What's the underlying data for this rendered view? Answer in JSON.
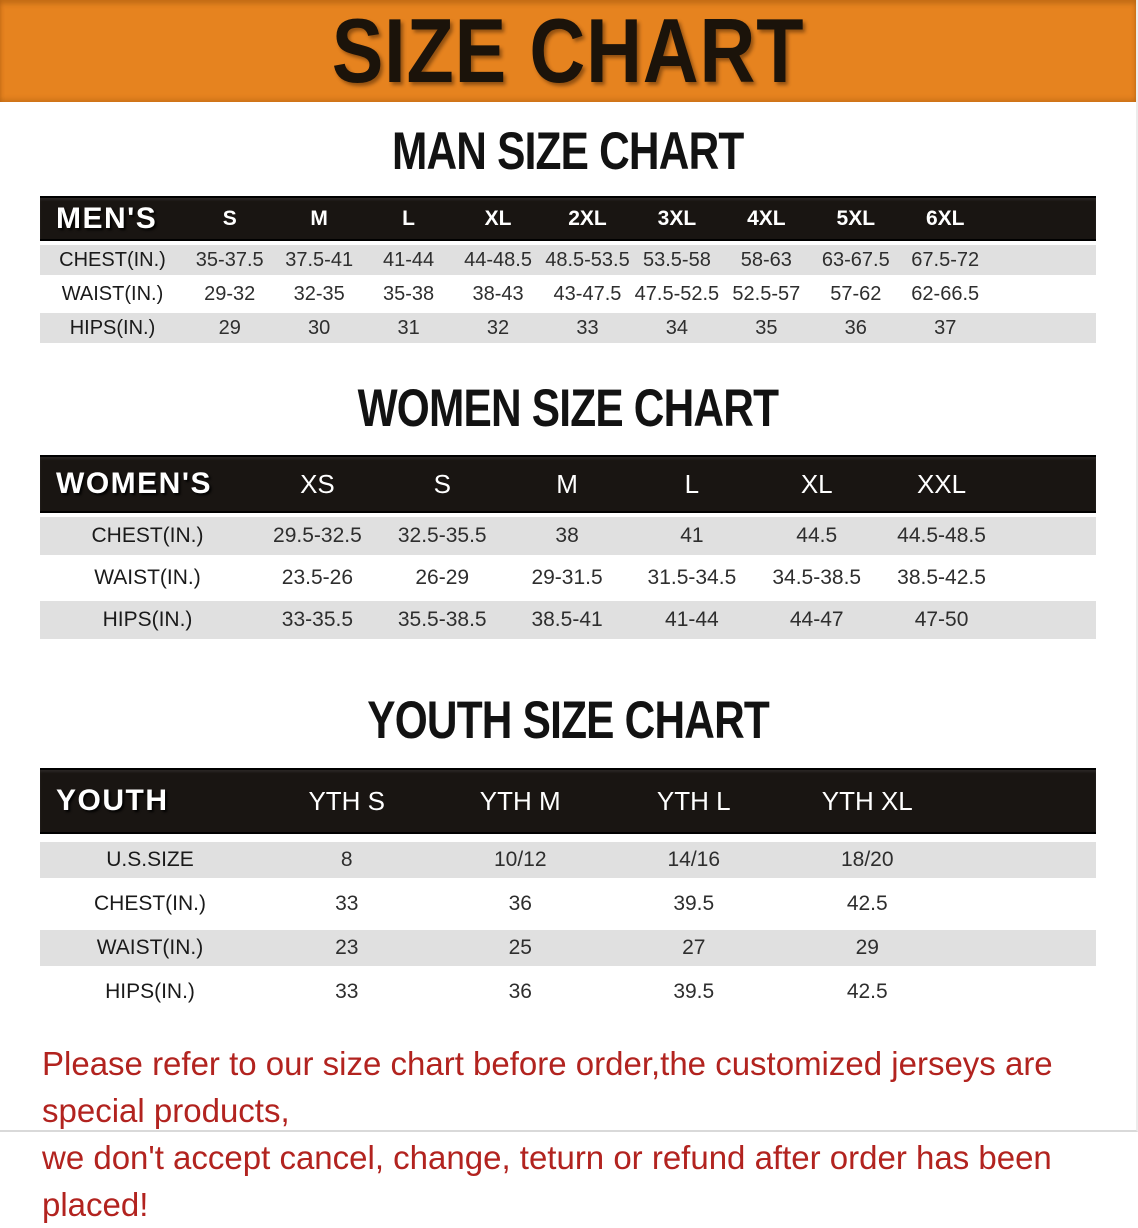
{
  "banner": {
    "title": "SIZE CHART"
  },
  "sections": [
    {
      "heading": "MAN SIZE CHART",
      "table": {
        "corner": "MEN'S",
        "columns": [
          "S",
          "M",
          "L",
          "XL",
          "2XL",
          "3XL",
          "4XL",
          "5XL",
          "6XL"
        ],
        "rows": [
          {
            "label": "CHEST(IN.)",
            "values": [
              "35-37.5",
              "37.5-41",
              "41-44",
              "44-48.5",
              "48.5-53.5",
              "53.5-58",
              "58-63",
              "63-67.5",
              "67.5-72"
            ]
          },
          {
            "label": "WAIST(IN.)",
            "values": [
              "29-32",
              "32-35",
              "35-38",
              "38-43",
              "43-47.5",
              "47.5-52.5",
              "52.5-57",
              "57-62",
              "62-66.5"
            ]
          },
          {
            "label": "HIPS(IN.)",
            "values": [
              "29",
              "30",
              "31",
              "32",
              "33",
              "34",
              "35",
              "36",
              "37"
            ]
          }
        ]
      }
    },
    {
      "heading": "WOMEN SIZE CHART",
      "table": {
        "corner": "WOMEN'S",
        "columns": [
          "XS",
          "S",
          "M",
          "L",
          "XL",
          "XXL"
        ],
        "rows": [
          {
            "label": "CHEST(IN.)",
            "values": [
              "29.5-32.5",
              "32.5-35.5",
              "38",
              "41",
              "44.5",
              "44.5-48.5"
            ]
          },
          {
            "label": "WAIST(IN.)",
            "values": [
              "23.5-26",
              "26-29",
              "29-31.5",
              "31.5-34.5",
              "34.5-38.5",
              "38.5-42.5"
            ]
          },
          {
            "label": "HIPS(IN.)",
            "values": [
              "33-35.5",
              "35.5-38.5",
              "38.5-41",
              "41-44",
              "44-47",
              "47-50"
            ]
          }
        ]
      }
    },
    {
      "heading": "YOUTH SIZE CHART",
      "table": {
        "corner": "YOUTH",
        "columns": [
          "YTH S",
          "YTH M",
          "YTH L",
          "YTH XL"
        ],
        "rows": [
          {
            "label": "U.S.SIZE",
            "values": [
              "8",
              "10/12",
              "14/16",
              "18/20"
            ]
          },
          {
            "label": "CHEST(IN.)",
            "values": [
              "33",
              "36",
              "39.5",
              "42.5"
            ]
          },
          {
            "label": "WAIST(IN.)",
            "values": [
              "23",
              "25",
              "27",
              "29"
            ]
          },
          {
            "label": "HIPS(IN.)",
            "values": [
              "33",
              "36",
              "39.5",
              "42.5"
            ]
          }
        ]
      }
    }
  ],
  "footer": {
    "lines": [
      "Please refer to our size chart before order,the customized jerseys are special products,",
      "we don't accept cancel, change, teturn or refund after order has been placed!"
    ]
  },
  "colors": {
    "banner_background": "#E6831F",
    "header_bar": "#191512",
    "stripe_gray": "#E0E0E0",
    "footer_red": "#B2231F"
  }
}
